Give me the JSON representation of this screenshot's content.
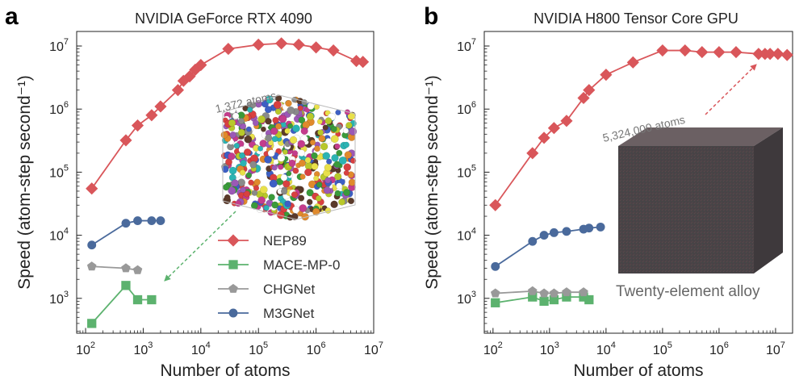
{
  "figure": {
    "annotations": {
      "a_atoms": "1,372 atoms",
      "b_atoms": "5,324,000 atoms",
      "b_system": "Twenty-element alloy"
    }
  },
  "chart_data": [
    {
      "type": "line",
      "panel": "a",
      "title": "NVIDIA GeForce RTX 4090",
      "xlabel": "Number of atoms",
      "ylabel": "Speed (atom-step second⁻¹)",
      "xscale": "log",
      "yscale": "log",
      "xlim": [
        70,
        10000000
      ],
      "ylim": [
        280,
        17000000
      ],
      "xticks": [
        100,
        1000,
        10000,
        100000,
        1000000,
        10000000
      ],
      "xtick_labels": [
        [
          "10",
          "2"
        ],
        [
          "10",
          "3"
        ],
        [
          "10",
          "4"
        ],
        [
          "10",
          "5"
        ],
        [
          "10",
          "6"
        ],
        [
          "10",
          "7"
        ]
      ],
      "yticks": [
        1000,
        10000,
        100000,
        1000000,
        10000000
      ],
      "ytick_labels": [
        [
          "10",
          "3"
        ],
        [
          "10",
          "4"
        ],
        [
          "10",
          "5"
        ],
        [
          "10",
          "6"
        ],
        [
          "10",
          "7"
        ]
      ],
      "grid": false,
      "legend": "bottom-right",
      "series": [
        {
          "name": "NEP89",
          "color": "#d9565a",
          "marker": "diamond",
          "x": [
            128,
            500,
            800,
            1400,
            2000,
            4000,
            5000,
            6400,
            8000,
            10000,
            30000,
            100000,
            250000,
            500000,
            1000000,
            2000000,
            5000000,
            6500000
          ],
          "y": [
            55000,
            320000,
            550000,
            800000,
            1100000,
            2000000,
            2800000,
            3300000,
            4200000,
            5000000,
            9000000,
            10500000,
            11000000,
            10500000,
            9500000,
            8500000,
            5800000,
            5600000
          ]
        },
        {
          "name": "MACE-MP-0",
          "color": "#5cb26e",
          "marker": "square",
          "x": [
            128,
            500,
            800,
            1400
          ],
          "y": [
            400,
            1600,
            950,
            950
          ]
        },
        {
          "name": "CHGNet",
          "color": "#999999",
          "marker": "pentagon",
          "x": [
            128,
            500,
            800
          ],
          "y": [
            3200,
            3000,
            2800
          ]
        },
        {
          "name": "M3GNet",
          "color": "#4a6a9c",
          "marker": "circle",
          "x": [
            128,
            500,
            800,
            1400,
            2000
          ],
          "y": [
            7000,
            15500,
            17000,
            17000,
            17000
          ]
        }
      ]
    },
    {
      "type": "line",
      "panel": "b",
      "title": "NVIDIA H800 Tensor Core GPU",
      "xlabel": "Number of atoms",
      "ylabel": "Speed (atom-step second⁻¹)",
      "xscale": "log",
      "yscale": "log",
      "xlim": [
        70,
        20000000
      ],
      "ylim": [
        280,
        17000000
      ],
      "xticks": [
        100,
        1000,
        10000,
        100000,
        1000000,
        10000000
      ],
      "xtick_labels": [
        [
          "10",
          "2"
        ],
        [
          "10",
          "3"
        ],
        [
          "10",
          "4"
        ],
        [
          "10",
          "5"
        ],
        [
          "10",
          "6"
        ],
        [
          "10",
          "7"
        ]
      ],
      "yticks": [
        1000,
        10000,
        100000,
        1000000,
        10000000
      ],
      "ytick_labels": [
        [
          "10",
          "3"
        ],
        [
          "10",
          "4"
        ],
        [
          "10",
          "5"
        ],
        [
          "10",
          "6"
        ],
        [
          "10",
          "7"
        ]
      ],
      "grid": false,
      "legend": "none",
      "series": [
        {
          "name": "NEP89",
          "color": "#d9565a",
          "marker": "diamond",
          "x": [
            110,
            500,
            800,
            1200,
            2000,
            4000,
            5000,
            10000,
            30000,
            100000,
            250000,
            500000,
            1000000,
            2000000,
            5000000,
            6500000,
            8000000,
            11000000,
            16000000
          ],
          "y": [
            30000,
            200000,
            350000,
            500000,
            650000,
            1500000,
            2000000,
            3500000,
            5500000,
            8500000,
            8500000,
            8000000,
            8000000,
            8000000,
            7500000,
            7500000,
            7500000,
            7500000,
            7200000
          ]
        },
        {
          "name": "MACE-MP-0",
          "color": "#5cb26e",
          "marker": "square",
          "x": [
            110,
            500,
            800,
            1200,
            2000,
            4000,
            5000
          ],
          "y": [
            850,
            1050,
            900,
            950,
            1050,
            1050,
            950
          ]
        },
        {
          "name": "CHGNet",
          "color": "#999999",
          "marker": "pentagon",
          "x": [
            110,
            500,
            800,
            1200,
            2000,
            4000
          ],
          "y": [
            1200,
            1300,
            1200,
            1200,
            1250,
            1250
          ]
        },
        {
          "name": "M3GNet",
          "color": "#4a6a9c",
          "marker": "circle",
          "x": [
            110,
            500,
            800,
            1200,
            2000,
            4000,
            5000,
            8000
          ],
          "y": [
            3200,
            8000,
            10000,
            11000,
            11500,
            12500,
            13000,
            13500
          ]
        }
      ]
    }
  ]
}
